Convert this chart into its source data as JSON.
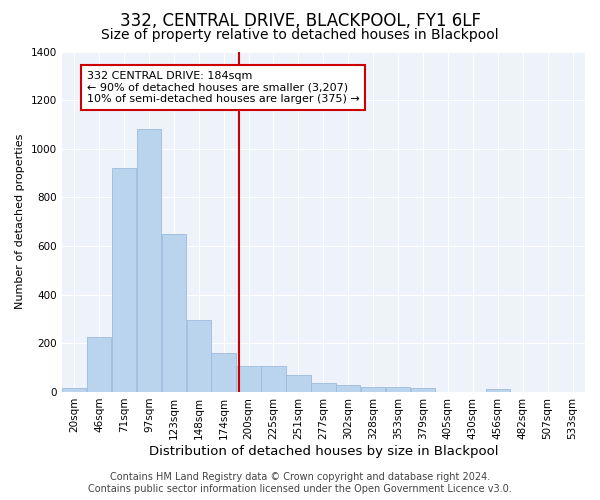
{
  "title": "332, CENTRAL DRIVE, BLACKPOOL, FY1 6LF",
  "subtitle": "Size of property relative to detached houses in Blackpool",
  "xlabel": "Distribution of detached houses by size in Blackpool",
  "ylabel": "Number of detached properties",
  "footer_line1": "Contains HM Land Registry data © Crown copyright and database right 2024.",
  "footer_line2": "Contains public sector information licensed under the Open Government Licence v3.0.",
  "bin_labels": [
    "20sqm",
    "46sqm",
    "71sqm",
    "97sqm",
    "123sqm",
    "148sqm",
    "174sqm",
    "200sqm",
    "225sqm",
    "251sqm",
    "277sqm",
    "302sqm",
    "328sqm",
    "353sqm",
    "379sqm",
    "405sqm",
    "430sqm",
    "456sqm",
    "482sqm",
    "507sqm",
    "533sqm"
  ],
  "bar_values": [
    15,
    225,
    920,
    1080,
    650,
    295,
    160,
    105,
    105,
    70,
    38,
    28,
    20,
    20,
    15,
    0,
    0,
    12,
    0,
    0,
    0
  ],
  "bar_color": "#bad4ee",
  "bar_edge_color": "#9bbcdc",
  "bar_width": 0.98,
  "vline_x": 6.62,
  "vline_color": "#cc0000",
  "ylim": [
    0,
    1400
  ],
  "yticks": [
    0,
    200,
    400,
    600,
    800,
    1000,
    1200,
    1400
  ],
  "annotation_text": "332 CENTRAL DRIVE: 184sqm\n← 90% of detached houses are smaller (3,207)\n10% of semi-detached houses are larger (375) →",
  "annotation_box_facecolor": "#ffffff",
  "annotation_box_edgecolor": "#cc0000",
  "bg_color": "#eef2fb",
  "grid_color": "#ffffff",
  "title_fontsize": 12,
  "subtitle_fontsize": 10,
  "xlabel_fontsize": 9.5,
  "ylabel_fontsize": 8,
  "tick_fontsize": 7.5,
  "annot_fontsize": 8,
  "footer_fontsize": 7
}
